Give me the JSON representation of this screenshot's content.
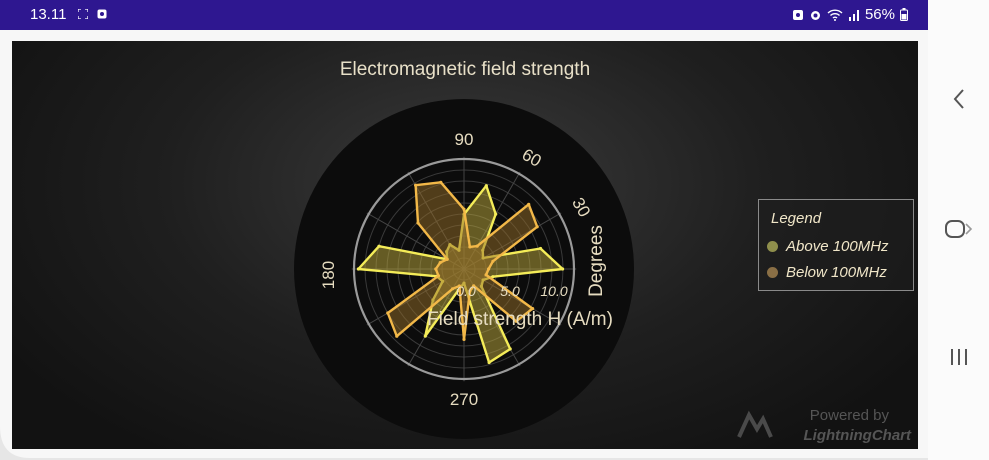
{
  "status_bar": {
    "time": "13.11",
    "battery": "56%"
  },
  "chart_data": {
    "type": "polar-area",
    "title": "Electromagnetic field strength",
    "radial_axis": {
      "label": "Field strength H (A/m)",
      "min": 0,
      "max": 12.5,
      "ticks": [
        "0.0",
        "5.0",
        "10.0"
      ]
    },
    "angular_axis": {
      "label": "Degrees",
      "ticks": [
        "30",
        "60",
        "90",
        "180",
        "270"
      ]
    },
    "legend": {
      "title": "Legend",
      "placement": "right"
    },
    "series": [
      {
        "name": "Above 100MHz",
        "angles": [
          0,
          15,
          30,
          45,
          60,
          75,
          90,
          105,
          120,
          135,
          150,
          165,
          180,
          195,
          210,
          225,
          240,
          255,
          270,
          285,
          300,
          315,
          330,
          345
        ],
        "values": [
          11.2,
          9.0,
          2.5,
          3.0,
          7.2,
          9.8,
          6.2,
          2.2,
          3.2,
          2.8,
          2.2,
          10.0,
          12.0,
          3.2,
          2.8,
          5.0,
          8.8,
          2.5,
          1.6,
          11.0,
          10.5,
          2.8,
          2.5,
          3.4
        ]
      },
      {
        "name": "Below 100MHz",
        "angles": [
          0,
          15,
          30,
          45,
          60,
          75,
          90,
          105,
          120,
          135,
          150,
          165,
          180,
          195,
          210,
          225,
          240,
          255,
          270,
          285,
          300,
          315,
          330,
          345
        ],
        "values": [
          2.8,
          3.4,
          9.6,
          10.4,
          3.0,
          2.6,
          6.8,
          10.2,
          11.0,
          7.4,
          2.2,
          2.8,
          3.2,
          3.0,
          10.0,
          10.8,
          2.6,
          2.0,
          8.0,
          2.6,
          2.2,
          8.4,
          9.0,
          2.6
        ]
      }
    ]
  },
  "colors": {
    "above_fill": "rgba(190,170,60,0.50)",
    "above_stroke": "#f4ec58",
    "above_dot": "#8f8f4c",
    "below_fill": "rgba(150,110,40,0.50)",
    "below_stroke": "#f2b848",
    "below_dot": "#8a6f45"
  },
  "watermark": {
    "line1": "Powered by",
    "line2": "LightningChart"
  },
  "nav": {
    "icons": [
      "back-icon",
      "home-icon",
      "recents-icon"
    ]
  }
}
